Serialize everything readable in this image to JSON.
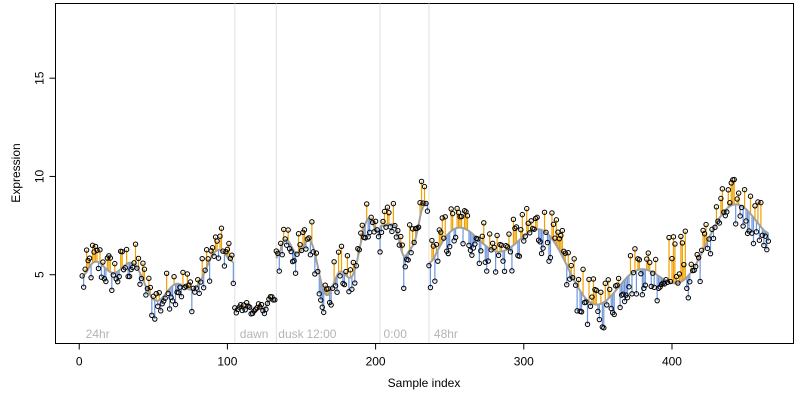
{
  "chart_data": {
    "type": "scatter",
    "title": "",
    "xlabel": "Sample index",
    "ylabel": "Expression",
    "xlim": [
      -16,
      482
    ],
    "ylim": [
      1.5,
      18.8
    ],
    "x_ticks": [
      0,
      100,
      200,
      300,
      400
    ],
    "y_ticks": [
      5,
      10,
      15
    ],
    "grid": false,
    "legend": "none",
    "colors": {
      "points_stroke": "#000000",
      "residual_above": "#f0a000",
      "residual_below": "#6e96dc",
      "trend_line": "#a0a0a0",
      "period_divider": "#e0e0e0",
      "period_label": "#b4b4b4"
    },
    "period_dividers": [
      105,
      133,
      203,
      236
    ],
    "period_labels": [
      {
        "text": "24hr",
        "x": 3
      },
      {
        "text": "dawn",
        "x": 107
      },
      {
        "text": "dusk",
        "x": 133
      },
      {
        "text": "12:00",
        "x": 152
      },
      {
        "text": "0:00",
        "x": 204
      },
      {
        "text": "48hr",
        "x": 238
      }
    ],
    "segments": [
      {
        "x0": 2,
        "x1": 104,
        "base": 4.6,
        "amp": 0.9,
        "noise": 1.1,
        "trend_smooth": 3
      },
      {
        "x0": 105,
        "x1": 132,
        "base": 3.1,
        "amp": 0.2,
        "noise": 0.25,
        "trend_smooth": 1
      },
      {
        "x0": 133,
        "x1": 202,
        "base": 5.2,
        "amp": 1.4,
        "noise": 1.2,
        "trend_smooth": 3
      },
      {
        "x0": 203,
        "x1": 235,
        "base": 6.5,
        "amp": 1.2,
        "noise": 1.1,
        "trend_smooth": 3
      },
      {
        "x0": 236,
        "x1": 465,
        "base": 5.3,
        "amp": 1.7,
        "noise": 1.35,
        "trend_smooth": 3
      }
    ]
  }
}
